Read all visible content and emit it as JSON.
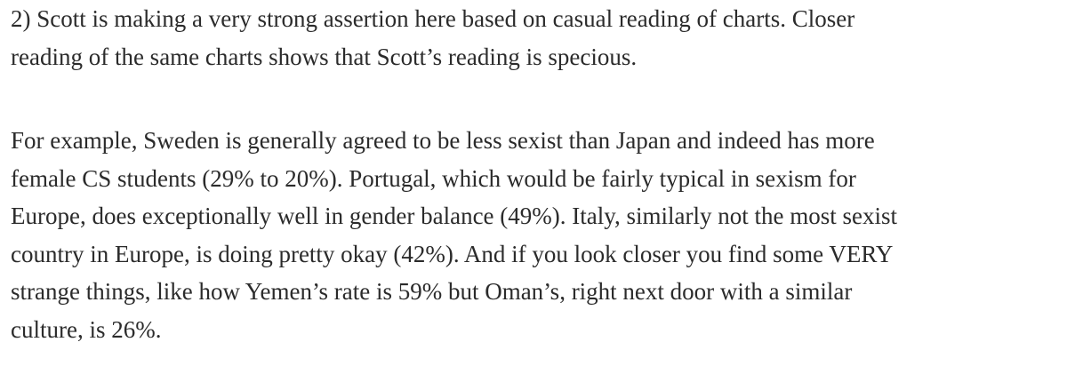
{
  "paragraphs": [
    {
      "lines": [
        "2) Scott is making a very strong assertion here based on casual reading of charts. Closer",
        "reading of the same charts shows that Scott’s reading is specious."
      ]
    },
    {
      "lines": [
        "For example, Sweden is generally agreed to be less sexist than Japan and indeed has more",
        "female CS students (29% to 20%). Portugal, which would be fairly typical in sexism for",
        "Europe, does exceptionally well in gender balance (49%). Italy, similarly not the most sexist",
        "country in Europe, is doing pretty okay (42%). And if you look closer you find some VERY",
        "strange things, like how Yemen’s rate is 59% but Oman’s, right next door with a similar",
        "culture, is 26%."
      ]
    }
  ]
}
